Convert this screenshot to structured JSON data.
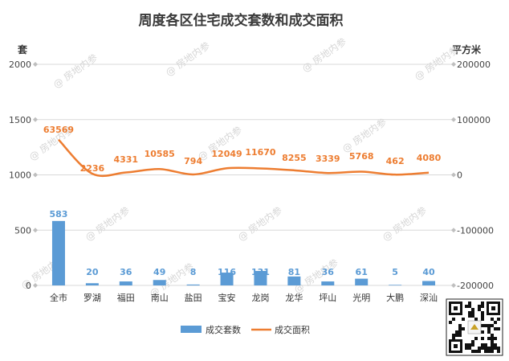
{
  "chart_data": {
    "type": "bar+line",
    "title": "周度各区住宅成交套数和成交面积",
    "y_left_unit": "套",
    "y_right_unit": "平方米",
    "y_left_range": [
      0,
      2000
    ],
    "y_left_ticks": [
      "0",
      "500",
      "1000",
      "1500",
      "2000"
    ],
    "y_right_range": [
      -200000,
      200000
    ],
    "y_right_ticks": [
      "-200000",
      "-100000",
      "0",
      "100000",
      "200000"
    ],
    "categories": [
      "全市",
      "罗湖",
      "福田",
      "南山",
      "盐田",
      "宝安",
      "龙岗",
      "龙华",
      "坪山",
      "光明",
      "大鹏",
      "深汕"
    ],
    "series": [
      {
        "name": "成交套数",
        "type": "bar",
        "axis": "left",
        "color": "#5b9bd5",
        "values": [
          583,
          20,
          36,
          49,
          8,
          116,
          131,
          81,
          36,
          61,
          5,
          40
        ]
      },
      {
        "name": "成交面积",
        "type": "line",
        "axis": "right",
        "color": "#ed7d31",
        "values": [
          63569,
          2236,
          4331,
          10585,
          794,
          12049,
          11670,
          8255,
          3339,
          5768,
          462,
          4080
        ]
      }
    ],
    "legend_position": "bottom",
    "grid": true,
    "watermark": "@ 房地内参"
  }
}
